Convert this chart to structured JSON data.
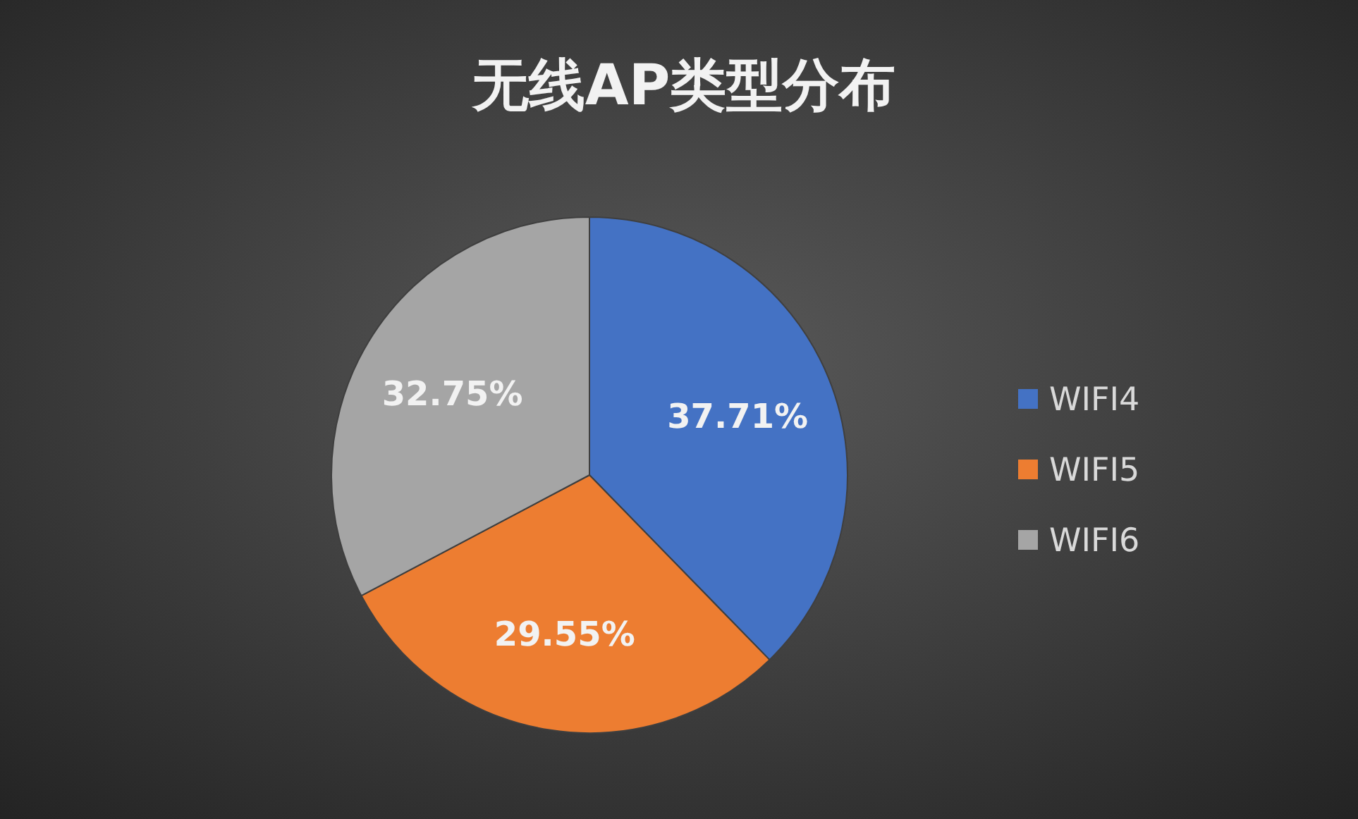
{
  "chart_data": {
    "type": "pie",
    "title": "无线AP类型分布",
    "categories": [
      "WIFI4",
      "WIFI5",
      "WIFI6"
    ],
    "values": [
      37.71,
      29.55,
      32.75
    ],
    "colors": [
      "#4472c4",
      "#ed7d31",
      "#a5a5a5"
    ],
    "value_labels": [
      "37.71%",
      "29.55%",
      "32.75%"
    ],
    "legend": "right"
  }
}
